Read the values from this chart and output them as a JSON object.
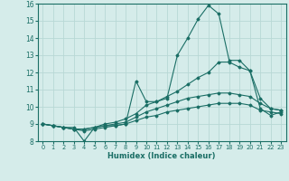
{
  "xlabel": "Humidex (Indice chaleur)",
  "xlim": [
    -0.5,
    23.5
  ],
  "ylim": [
    8,
    16
  ],
  "yticks": [
    8,
    9,
    10,
    11,
    12,
    13,
    14,
    15,
    16
  ],
  "xticks": [
    0,
    1,
    2,
    3,
    4,
    5,
    6,
    7,
    8,
    9,
    10,
    11,
    12,
    13,
    14,
    15,
    16,
    17,
    18,
    19,
    20,
    21,
    22,
    23
  ],
  "bg_color": "#d5ecea",
  "line_color": "#1a6e65",
  "grid_color": "#b8d8d5",
  "lines": [
    {
      "x": [
        0,
        1,
        2,
        3,
        4,
        5,
        6,
        7,
        8,
        9,
        10,
        11,
        12,
        13,
        14,
        15,
        16,
        17,
        18,
        19,
        20,
        21,
        22,
        23
      ],
      "y": [
        9.0,
        8.9,
        8.8,
        8.8,
        8.0,
        8.8,
        8.9,
        8.9,
        9.0,
        11.5,
        10.3,
        10.3,
        10.5,
        13.0,
        14.0,
        15.1,
        15.9,
        15.4,
        12.7,
        12.7,
        12.1,
        9.9,
        9.5,
        9.7
      ]
    },
    {
      "x": [
        0,
        1,
        2,
        3,
        4,
        5,
        6,
        7,
        8,
        9,
        10,
        11,
        12,
        13,
        14,
        15,
        16,
        17,
        18,
        19,
        20,
        21,
        22,
        23
      ],
      "y": [
        9.0,
        8.9,
        8.8,
        8.7,
        8.7,
        8.8,
        9.0,
        9.1,
        9.3,
        9.6,
        10.1,
        10.3,
        10.6,
        10.9,
        11.3,
        11.7,
        12.0,
        12.6,
        12.6,
        12.3,
        12.1,
        10.5,
        9.9,
        9.8
      ]
    },
    {
      "x": [
        0,
        1,
        2,
        3,
        4,
        5,
        6,
        7,
        8,
        9,
        10,
        11,
        12,
        13,
        14,
        15,
        16,
        17,
        18,
        19,
        20,
        21,
        22,
        23
      ],
      "y": [
        9.0,
        8.9,
        8.8,
        8.7,
        8.7,
        8.8,
        8.9,
        9.0,
        9.1,
        9.4,
        9.7,
        9.9,
        10.1,
        10.3,
        10.5,
        10.6,
        10.7,
        10.8,
        10.8,
        10.7,
        10.6,
        10.2,
        9.9,
        9.8
      ]
    },
    {
      "x": [
        0,
        1,
        2,
        3,
        4,
        5,
        6,
        7,
        8,
        9,
        10,
        11,
        12,
        13,
        14,
        15,
        16,
        17,
        18,
        19,
        20,
        21,
        22,
        23
      ],
      "y": [
        9.0,
        8.9,
        8.8,
        8.7,
        8.6,
        8.7,
        8.8,
        8.9,
        9.0,
        9.2,
        9.4,
        9.5,
        9.7,
        9.8,
        9.9,
        10.0,
        10.1,
        10.2,
        10.2,
        10.2,
        10.1,
        9.8,
        9.7,
        9.6
      ]
    }
  ]
}
